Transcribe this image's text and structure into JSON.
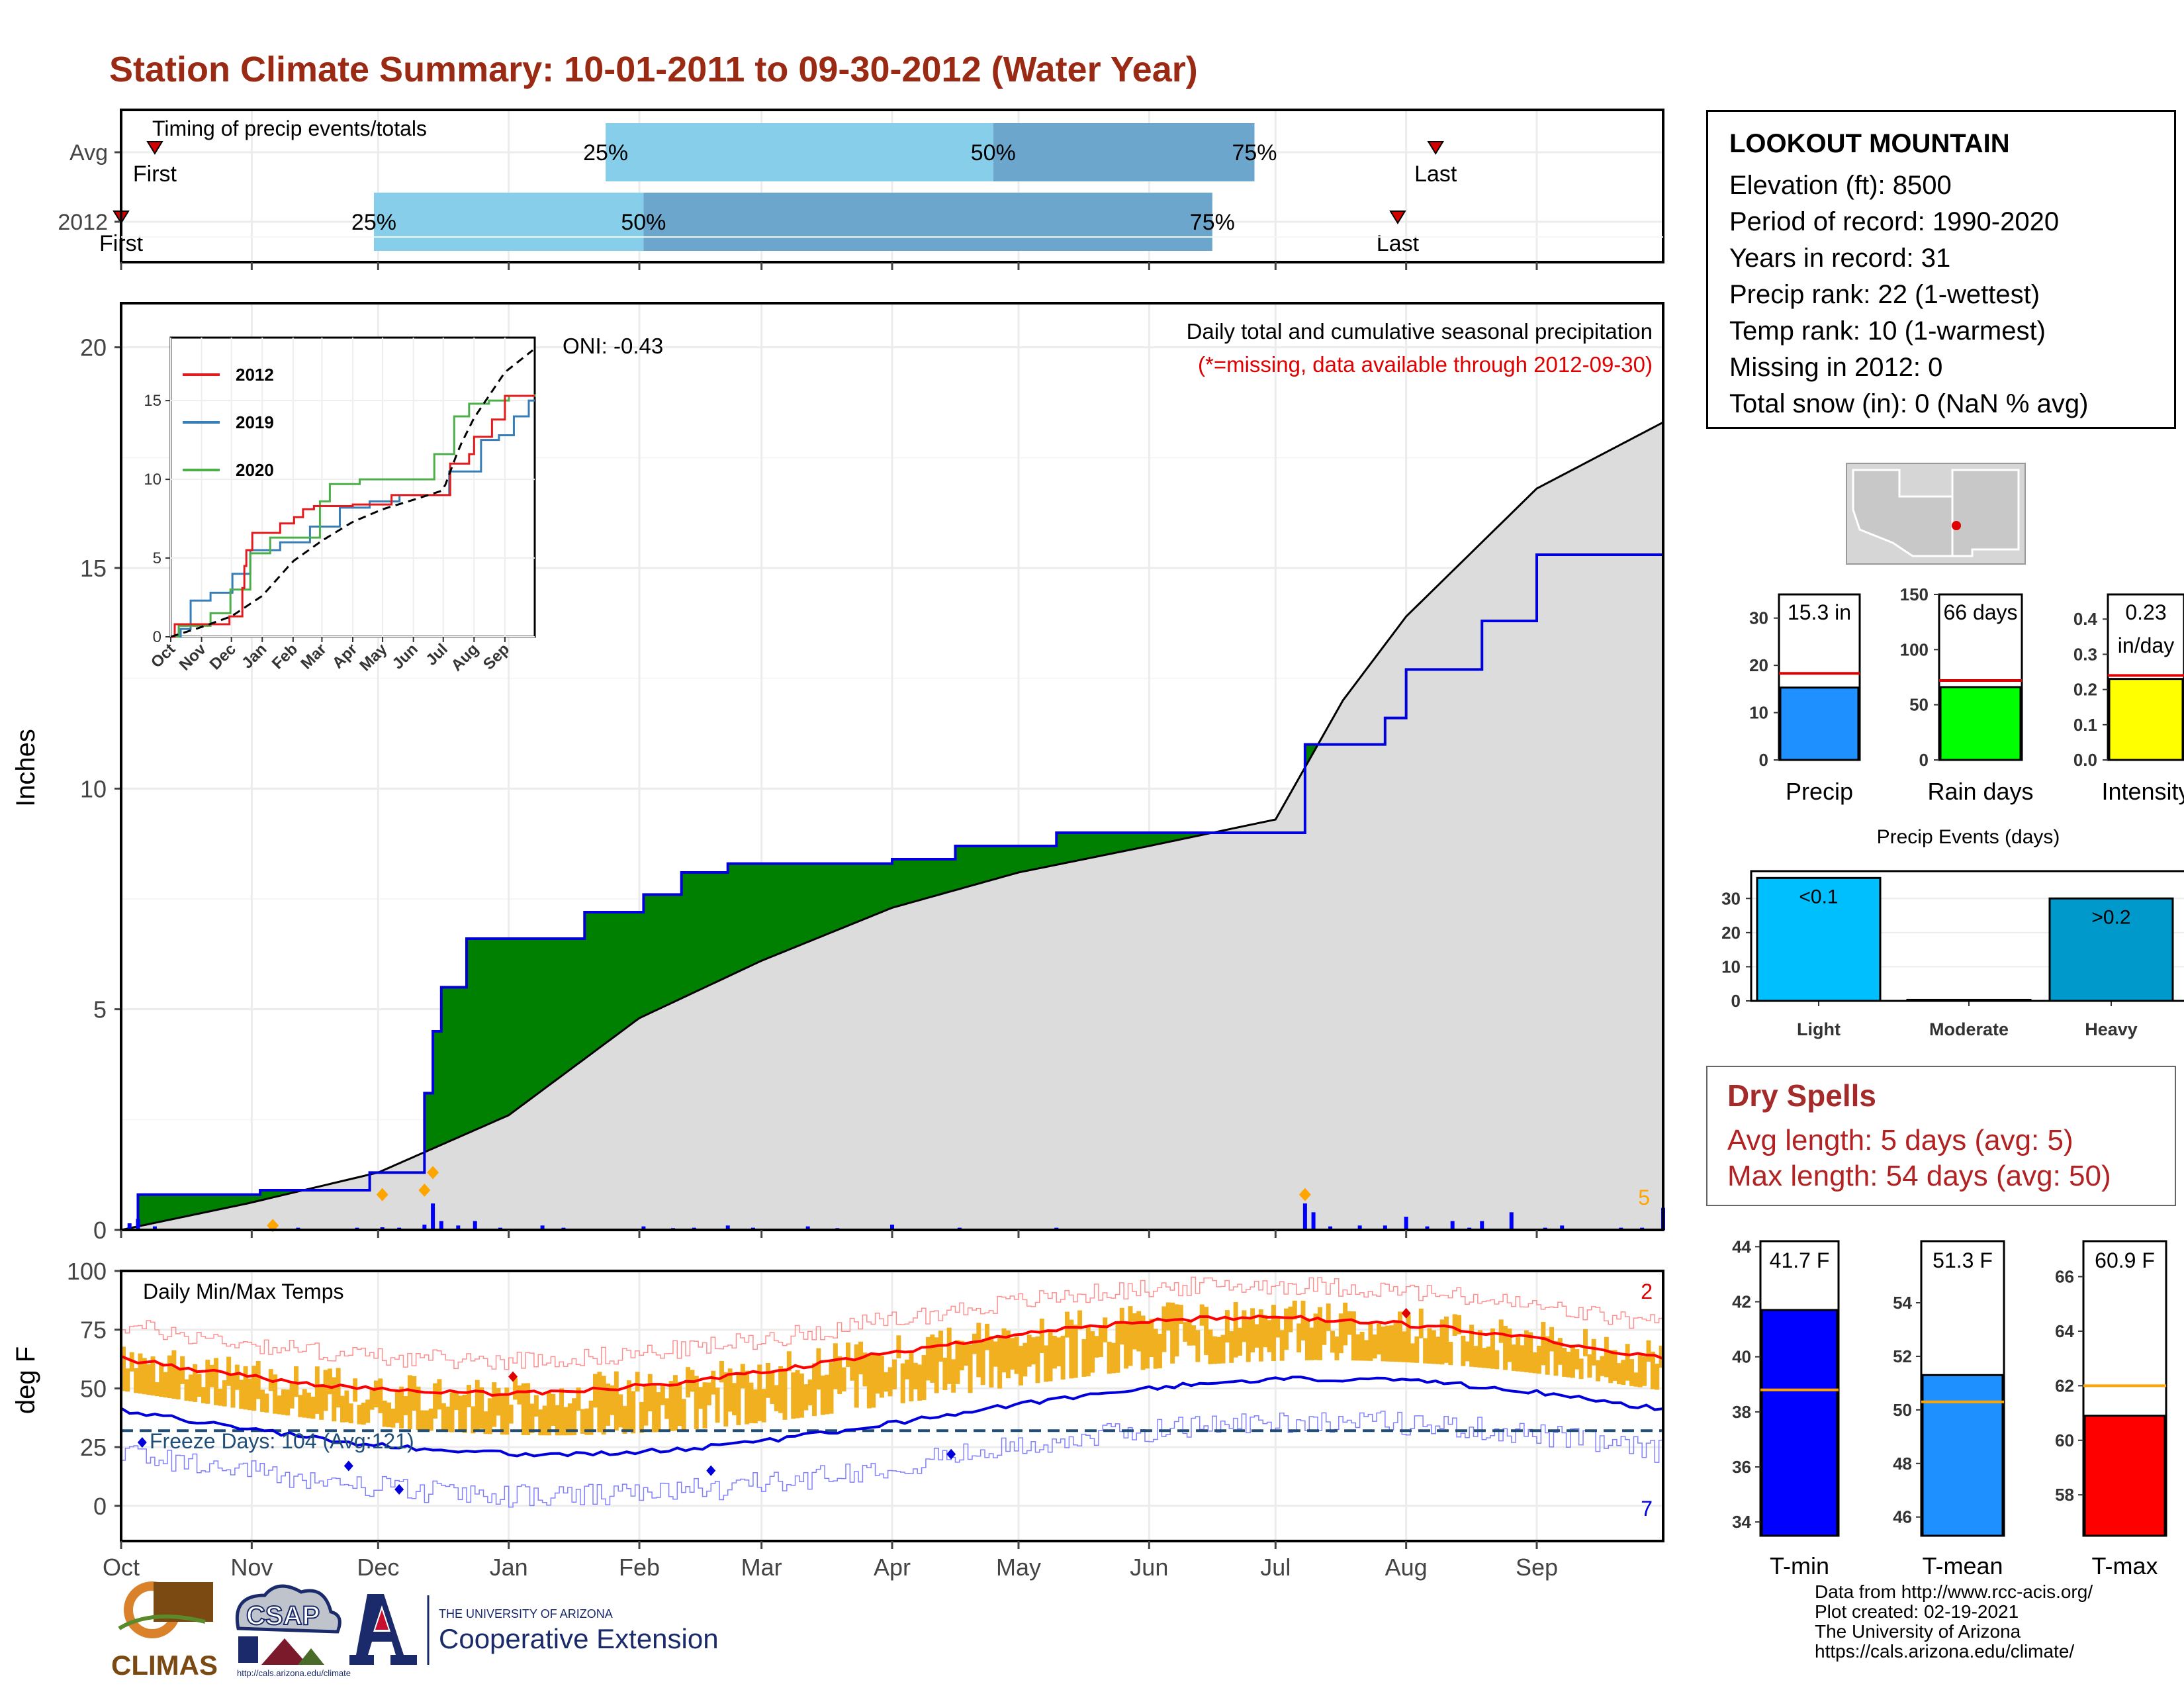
{
  "title": "Station Climate Summary: 10-01-2011 to 09-30-2012 (Water Year)",
  "timing": {
    "title": "Timing of precip events/totals",
    "rows": [
      {
        "label": "Avg",
        "first_day": 8,
        "q25": 115,
        "q50": 207,
        "q75": 269,
        "last_day": 312,
        "first_label": "First",
        "last_label": "Last"
      },
      {
        "label": "2012",
        "first_day": 0,
        "q25": 60,
        "q50": 124,
        "q75": 259,
        "last_day": 303,
        "first_label": "First",
        "last_label": "Last"
      }
    ],
    "q_labels": [
      "25%",
      "50%",
      "75%"
    ],
    "colors": {
      "light": "#87ceeb",
      "dark": "#6ca6cd",
      "marker": "#d40000"
    }
  },
  "precip_panel": {
    "title": "Daily total and cumulative seasonal precipitation",
    "subtitle": "(*=missing, data available through 2012-09-30)",
    "oni": "ONI: -0.43",
    "ylabel": "Inches",
    "yticks": [
      0,
      5,
      10,
      15,
      20
    ],
    "ylim": [
      0,
      21
    ],
    "corner_count": "5",
    "colors": {
      "above": "#008000",
      "below": "#8b5a00",
      "normal_fill": "#dcdcdc",
      "obs_line": "#0000dd",
      "daily": "#0000ff",
      "extreme": "#ffa500"
    }
  },
  "inset": {
    "yticks": [
      0,
      5,
      10,
      15
    ],
    "months": [
      "Oct",
      "Nov",
      "Dec",
      "Jan",
      "Feb",
      "Mar",
      "Apr",
      "May",
      "Jun",
      "Jul",
      "Aug",
      "Sep"
    ],
    "legend": [
      {
        "name": "2012",
        "color": "#e41a1c"
      },
      {
        "name": "2019",
        "color": "#377eb8"
      },
      {
        "name": "2020",
        "color": "#4daf4a"
      }
    ]
  },
  "temp_panel": {
    "title": "Daily Min/Max Temps",
    "ylabel": "deg F",
    "yticks": [
      0,
      25,
      50,
      75,
      100
    ],
    "ylim": [
      -15,
      100
    ],
    "freeze_text": "Freeze Days: 104 (Avg:121)",
    "hot_count": "2",
    "cold_count": "7",
    "freeze_line": 32,
    "colors": {
      "bar": "#f0b020",
      "max": "#ff0000",
      "min": "#0000dd",
      "max_faint": "#ff9090",
      "min_faint": "#8080ff",
      "freeze": "#1f4e79"
    }
  },
  "months": [
    "Oct",
    "Nov",
    "Dec",
    "Jan",
    "Feb",
    "Mar",
    "Apr",
    "May",
    "Jun",
    "Jul",
    "Aug",
    "Sep"
  ],
  "station": {
    "name": "LOOKOUT MOUNTAIN",
    "lines": [
      "Elevation (ft): 8500",
      "Period of record: 1990-2020",
      "Years in record: 31",
      "Precip rank: 22 (1-wettest)",
      "Temp rank: 10 (1-warmest)",
      "Missing in 2012: 0",
      "Total snow (in): 0 (NaN % avg)"
    ]
  },
  "summary_bars": [
    {
      "label": "Precip",
      "value": 15.3,
      "avg": 18.3,
      "display": "15.3 in",
      "ylim": [
        0,
        35
      ],
      "yticks": [
        "0",
        "10",
        "20",
        "30"
      ],
      "color": "#1e90ff"
    },
    {
      "label": "Rain days",
      "value": 66,
      "avg": 72,
      "display": "66 days",
      "ylim": [
        0,
        150
      ],
      "yticks": [
        "0",
        "50",
        "100",
        "150"
      ],
      "color": "#00ff00"
    },
    {
      "label": "Intensity",
      "value": 0.23,
      "avg": 0.24,
      "display": "0.23",
      "display2": "in/day",
      "ylim": [
        0,
        0.47
      ],
      "yticks": [
        "0.0",
        "0.1",
        "0.2",
        "0.3",
        "0.4"
      ],
      "color": "#ffff00"
    }
  ],
  "events": {
    "title": "Precip Events (days)",
    "categories": [
      "Light",
      "Moderate",
      "Heavy"
    ],
    "values": [
      36,
      0,
      30
    ],
    "labels": [
      "<0.1",
      "",
      ">0.2"
    ],
    "yticks": [
      0,
      10,
      20,
      30
    ],
    "ylim": [
      0,
      38
    ],
    "colors": [
      "#00bfff",
      "#00bfff",
      "#0099cc"
    ]
  },
  "dry_spells": {
    "title": "Dry Spells",
    "lines": [
      "Avg length: 5 days (avg: 5)",
      "Max length: 54 days (avg: 50)"
    ]
  },
  "temp_bars": [
    {
      "label": "T-min",
      "value": 41.7,
      "avg": 38.8,
      "display": "41.7 F",
      "ylim": [
        33.5,
        44.2
      ],
      "yticks": [
        34,
        36,
        38,
        40,
        42,
        44
      ],
      "color": "#0000ff"
    },
    {
      "label": "T-mean",
      "value": 51.3,
      "avg": 50.3,
      "display": "51.3 F",
      "ylim": [
        45.3,
        56.3
      ],
      "yticks": [
        46,
        48,
        50,
        52,
        54
      ],
      "color": "#1e90ff"
    },
    {
      "label": "T-max",
      "value": 60.9,
      "avg": 62.0,
      "display": "60.9 F",
      "ylim": [
        56.5,
        67.3
      ],
      "yticks": [
        58,
        60,
        62,
        64,
        66
      ],
      "color": "#ff0000"
    }
  ],
  "credits": [
    "Data from http://www.rcc-acis.org/",
    "Plot created: 02-19-2021",
    "The University of Arizona",
    "https://cals.arizona.edu/climate/"
  ],
  "logos": {
    "climas": "CLIMAS",
    "csap": "CSAP",
    "csap_url": "http://cals.arizona.edu/climate",
    "ua_line1": "THE UNIVERSITY OF ARIZONA",
    "ua_line2": "Cooperative Extension"
  }
}
